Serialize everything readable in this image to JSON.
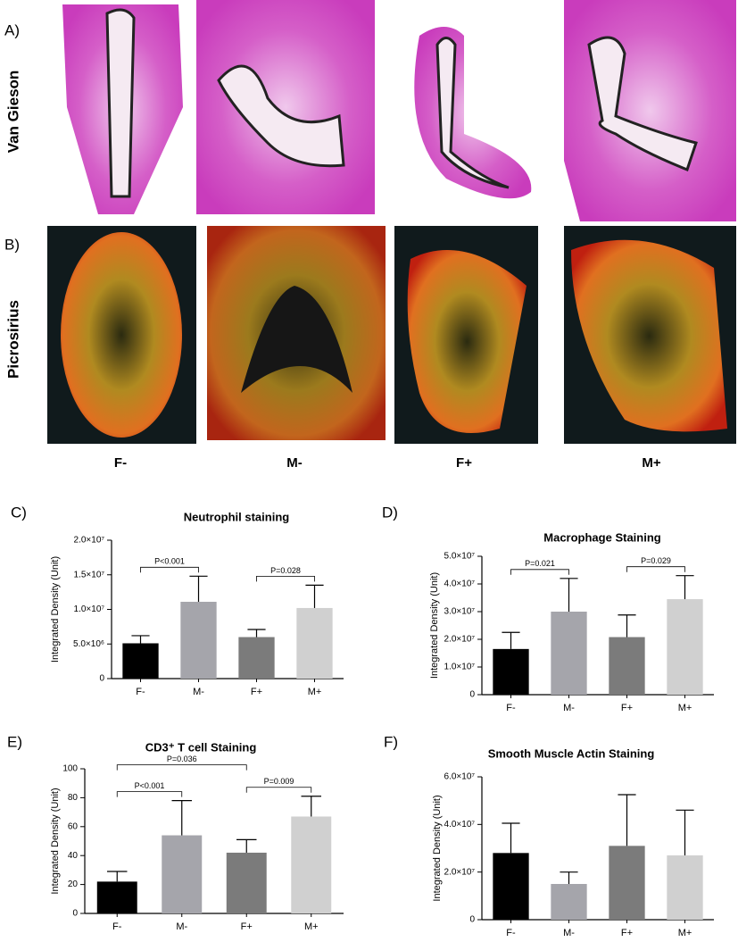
{
  "panels": {
    "labels": [
      "A)",
      "B)"
    ],
    "rows": [
      "Van Gieson",
      "Picrosirius"
    ],
    "columns": [
      "F-",
      "M-",
      "F+",
      "M+"
    ]
  },
  "chart_data": [
    {
      "panel_label": "C)",
      "type": "bar",
      "title": "Neutrophil staining",
      "ylabel": "Integrated Density (Unit)",
      "categories": [
        "F-",
        "M-",
        "F+",
        "M+"
      ],
      "values": [
        5100000,
        11100000,
        6000000,
        10200000
      ],
      "errors": [
        1100000,
        3700000,
        1100000,
        3300000
      ],
      "colors": [
        "#000000",
        "#a5a5ab",
        "#7b7b7b",
        "#d0d0d0"
      ],
      "ylim": [
        0,
        20000000
      ],
      "yticks": [
        0,
        {
          "value": 5000000,
          "label": "5.0×10⁶"
        },
        {
          "value": 10000000,
          "label": "1.0×10⁷"
        },
        {
          "value": 15000000,
          "label": "1.5×10⁷"
        },
        {
          "value": 20000000,
          "label": "2.0×10⁷"
        }
      ],
      "annotations": [
        {
          "text": "P<0.001",
          "between": [
            "F-",
            "M-"
          ]
        },
        {
          "text": "P=0.028",
          "between": [
            "F+",
            "M+"
          ]
        }
      ]
    },
    {
      "panel_label": "D)",
      "type": "bar",
      "title": "Macrophage Staining",
      "ylabel": "Integrated Density (Unit)",
      "categories": [
        "F-",
        "M-",
        "F+",
        "M+"
      ],
      "values": [
        16500000,
        30000000,
        20800000,
        34500000
      ],
      "errors": [
        6000000,
        12000000,
        8000000,
        8500000
      ],
      "colors": [
        "#000000",
        "#a5a5ab",
        "#7b7b7b",
        "#d0d0d0"
      ],
      "ylim": [
        0,
        50000000
      ],
      "yticks": [
        0,
        {
          "value": 10000000,
          "label": "1.0×10⁷"
        },
        {
          "value": 20000000,
          "label": "2.0×10⁷"
        },
        {
          "value": 30000000,
          "label": "3.0×10⁷"
        },
        {
          "value": 40000000,
          "label": "4.0×10⁷"
        },
        {
          "value": 50000000,
          "label": "5.0×10⁷"
        }
      ],
      "annotations": [
        {
          "text": "P=0.021",
          "between": [
            "F-",
            "M-"
          ]
        },
        {
          "text": "P=0.029",
          "between": [
            "F+",
            "M+"
          ]
        }
      ]
    },
    {
      "panel_label": "E)",
      "type": "bar",
      "title": "CD3⁺ T cell Staining",
      "ylabel": "Integrated Density (Unit)",
      "categories": [
        "F-",
        "M-",
        "F+",
        "M+"
      ],
      "values": [
        22,
        54,
        42,
        67
      ],
      "errors": [
        7,
        24,
        9,
        14
      ],
      "colors": [
        "#000000",
        "#a5a5ab",
        "#7b7b7b",
        "#d0d0d0"
      ],
      "ylim": [
        0,
        100
      ],
      "yticks": [
        0,
        20,
        40,
        60,
        80,
        100
      ],
      "annotations": [
        {
          "text": "P<0.001",
          "between": [
            "F-",
            "M-"
          ]
        },
        {
          "text": "P=0.036",
          "between": [
            "F-",
            "F+"
          ]
        },
        {
          "text": "P=0.009",
          "between": [
            "F+",
            "M+"
          ]
        }
      ]
    },
    {
      "panel_label": "F)",
      "type": "bar",
      "title": "Smooth Muscle Actin Staining",
      "ylabel": "Integrated Density (Unit)",
      "categories": [
        "F-",
        "M-",
        "F+",
        "M+"
      ],
      "values": [
        28000000,
        15000000,
        31000000,
        27000000
      ],
      "errors": [
        12500000,
        5000000,
        21500000,
        19000000
      ],
      "colors": [
        "#000000",
        "#a5a5ab",
        "#7b7b7b",
        "#d0d0d0"
      ],
      "ylim": [
        0,
        60000000
      ],
      "yticks": [
        0,
        {
          "value": 20000000,
          "label": "2.0×10⁷"
        },
        {
          "value": 40000000,
          "label": "4.0×10⁷"
        },
        {
          "value": 60000000,
          "label": "6.0×10⁷"
        }
      ],
      "annotations": []
    }
  ]
}
